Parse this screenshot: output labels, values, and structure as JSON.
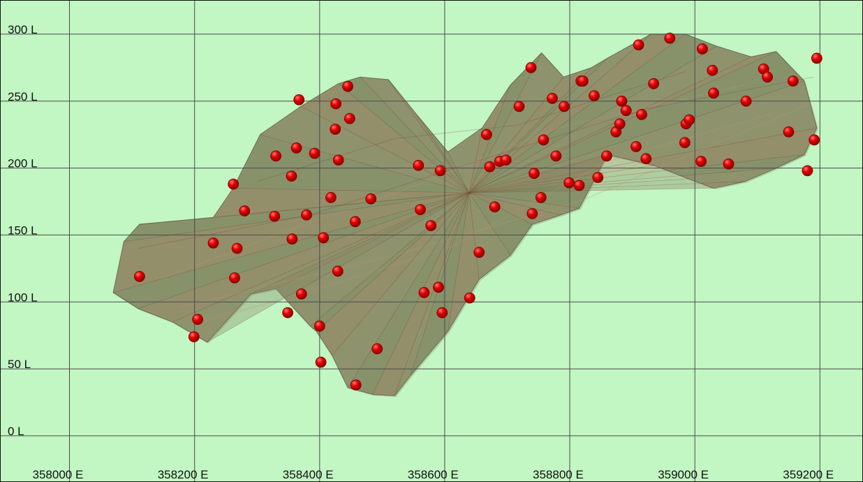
{
  "chart_data": {
    "type": "scatter",
    "title": "",
    "xlabel": "",
    "ylabel": "",
    "xlim": [
      357890,
      359270
    ],
    "ylim": [
      -35,
      325
    ],
    "x_ticks": [
      358000,
      358200,
      358400,
      358600,
      358800,
      359000,
      359200
    ],
    "y_ticks": [
      0,
      50,
      100,
      150,
      200,
      250,
      300
    ],
    "x_tick_labels": [
      "358000 E",
      "358200 E",
      "358400 E",
      "358600 E",
      "358800 E",
      "359000 E",
      "359200 E"
    ],
    "y_tick_labels": [
      "0 L",
      "50 L",
      "100 L",
      "150 L",
      "200 L",
      "250 L",
      "300 L"
    ],
    "grid": true,
    "colors": {
      "background": "#c2f6c3",
      "grid": "#4a4a4a",
      "points": "#e50000",
      "surface": "#8a926c"
    },
    "surface_outline": [
      [
        358070,
        107
      ],
      [
        358087,
        145
      ],
      [
        358112,
        158
      ],
      [
        358230,
        163
      ],
      [
        358262,
        185
      ],
      [
        358305,
        225
      ],
      [
        358370,
        246
      ],
      [
        358430,
        263
      ],
      [
        358465,
        268
      ],
      [
        358510,
        266
      ],
      [
        358555,
        240
      ],
      [
        358605,
        212
      ],
      [
        358660,
        230
      ],
      [
        358705,
        262
      ],
      [
        358755,
        286
      ],
      [
        358790,
        268
      ],
      [
        358835,
        275
      ],
      [
        358860,
        282
      ],
      [
        358930,
        300
      ],
      [
        358985,
        300
      ],
      [
        359035,
        291
      ],
      [
        359090,
        283
      ],
      [
        359130,
        287
      ],
      [
        359175,
        265
      ],
      [
        359195,
        230
      ],
      [
        359175,
        210
      ],
      [
        359130,
        200
      ],
      [
        359080,
        190
      ],
      [
        359030,
        185
      ],
      [
        358990,
        192
      ],
      [
        358935,
        202
      ],
      [
        358860,
        210
      ],
      [
        358815,
        170
      ],
      [
        358785,
        165
      ],
      [
        358740,
        158
      ],
      [
        358705,
        135
      ],
      [
        358655,
        117
      ],
      [
        358605,
        78
      ],
      [
        358545,
        45
      ],
      [
        358520,
        30
      ],
      [
        358485,
        31
      ],
      [
        358445,
        36
      ],
      [
        358420,
        60
      ],
      [
        358395,
        78
      ],
      [
        358385,
        82
      ],
      [
        358330,
        110
      ],
      [
        358290,
        106
      ],
      [
        358220,
        70
      ],
      [
        358165,
        85
      ],
      [
        358110,
        95
      ]
    ],
    "series": [
      {
        "points": [
          [
            358112,
            119
          ],
          [
            358199,
            74
          ],
          [
            358205,
            87
          ],
          [
            358230,
            144
          ],
          [
            358262,
            188
          ],
          [
            358264,
            118
          ],
          [
            358268,
            140
          ],
          [
            358280,
            168
          ],
          [
            358328,
            164
          ],
          [
            358330,
            209
          ],
          [
            358349,
            92
          ],
          [
            358355,
            194
          ],
          [
            358356,
            147
          ],
          [
            358363,
            215
          ],
          [
            358367,
            251
          ],
          [
            358371,
            106
          ],
          [
            358379,
            165
          ],
          [
            358392,
            211
          ],
          [
            358400,
            82
          ],
          [
            358402,
            55
          ],
          [
            358406,
            148
          ],
          [
            358418,
            178
          ],
          [
            358425,
            229
          ],
          [
            358426,
            248
          ],
          [
            358429,
            123
          ],
          [
            358430,
            206
          ],
          [
            358445,
            261
          ],
          [
            358448,
            237
          ],
          [
            358457,
            160
          ],
          [
            358458,
            38
          ],
          [
            358482,
            177
          ],
          [
            358492,
            65
          ],
          [
            358558,
            202
          ],
          [
            358561,
            169
          ],
          [
            358567,
            107
          ],
          [
            358578,
            157
          ],
          [
            358590,
            111
          ],
          [
            358593,
            198
          ],
          [
            358596,
            92
          ],
          [
            358640,
            103
          ],
          [
            358655,
            137
          ],
          [
            358667,
            225
          ],
          [
            358672,
            201
          ],
          [
            358680,
            171
          ],
          [
            358688,
            205
          ],
          [
            358698,
            206
          ],
          [
            358719,
            246
          ],
          [
            358738,
            275
          ],
          [
            358740,
            166
          ],
          [
            358743,
            196
          ],
          [
            358754,
            178
          ],
          [
            358758,
            221
          ],
          [
            358772,
            252
          ],
          [
            358778,
            209
          ],
          [
            358791,
            246
          ],
          [
            358799,
            189
          ],
          [
            358815,
            187
          ],
          [
            358818,
            265
          ],
          [
            358821,
            265
          ],
          [
            358839,
            254
          ],
          [
            358845,
            193
          ],
          [
            358859,
            209
          ],
          [
            358874,
            227
          ],
          [
            358880,
            233
          ],
          [
            358883,
            250
          ],
          [
            358890,
            243
          ],
          [
            358906,
            216
          ],
          [
            358910,
            292
          ],
          [
            358915,
            240
          ],
          [
            358922,
            207
          ],
          [
            358934,
            263
          ],
          [
            358960,
            297
          ],
          [
            358984,
            219
          ],
          [
            358986,
            233
          ],
          [
            358991,
            236
          ],
          [
            359010,
            205
          ],
          [
            359012,
            289
          ],
          [
            359028,
            273
          ],
          [
            359030,
            256
          ],
          [
            359054,
            203
          ],
          [
            359082,
            250
          ],
          [
            359110,
            274
          ],
          [
            359116,
            268
          ],
          [
            359150,
            227
          ],
          [
            359157,
            265
          ],
          [
            359180,
            198
          ],
          [
            359191,
            221
          ],
          [
            359195,
            282
          ]
        ]
      }
    ]
  }
}
